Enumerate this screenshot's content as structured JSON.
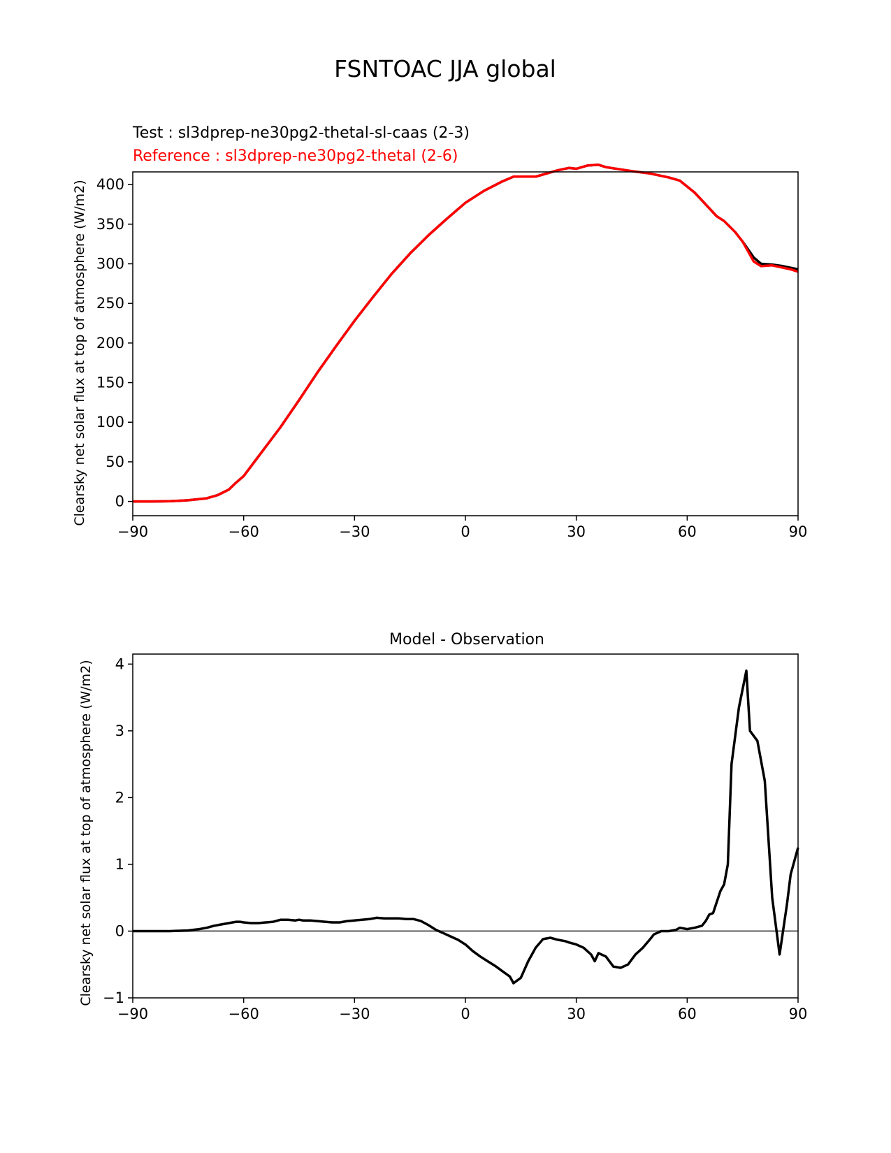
{
  "figure": {
    "title": "FSNTOAC JJA global"
  },
  "chart_data": [
    {
      "type": "line",
      "test_label": "Test : sl3dprep-ne30pg2-thetal-sl-caas (2-3)",
      "reference_label": "Reference : sl3dprep-ne30pg2-thetal (2-6)",
      "ylabel": "Clearsky net solar flux at top of atmosphere (W/m2)",
      "xlim": [
        -90,
        90
      ],
      "ylim": [
        -18,
        416
      ],
      "xticks": [
        -90,
        -60,
        -30,
        0,
        30,
        60,
        90
      ],
      "xtick_labels": [
        "−90",
        "−60",
        "−30",
        "0",
        "30",
        "60",
        "90"
      ],
      "yticks": [
        0,
        50,
        100,
        150,
        200,
        250,
        300,
        350,
        400
      ],
      "ytick_labels": [
        "0",
        "50",
        "100",
        "150",
        "200",
        "250",
        "300",
        "350",
        "400"
      ],
      "colors": {
        "test": "#000000",
        "reference": "#ff0000"
      },
      "series": [
        {
          "role": "test",
          "x": [
            -90,
            -85,
            -80,
            -75,
            -70,
            -67,
            -64,
            -62,
            -60,
            -55,
            -50,
            -45,
            -40,
            -35,
            -30,
            -25,
            -20,
            -15,
            -10,
            -5,
            0,
            5,
            10,
            13,
            15,
            19,
            25,
            28,
            30,
            33,
            36,
            38,
            45,
            50,
            55,
            58,
            62,
            65,
            68,
            70,
            73,
            75,
            78,
            80,
            83,
            86,
            88,
            90
          ],
          "y": [
            0,
            0,
            0.3,
            1.5,
            4,
            8,
            15,
            24,
            32,
            63,
            94,
            128,
            163,
            196,
            228,
            258,
            287,
            313,
            336,
            357,
            377,
            392,
            404,
            410,
            410,
            410,
            418,
            421,
            420,
            424,
            425,
            422,
            417,
            414,
            409,
            405,
            390,
            375,
            360,
            354,
            340,
            328,
            308,
            300,
            299,
            297,
            295,
            293
          ]
        },
        {
          "role": "reference",
          "x": [
            -90,
            -85,
            -80,
            -75,
            -70,
            -67,
            -64,
            -62,
            -60,
            -55,
            -50,
            -45,
            -40,
            -35,
            -30,
            -25,
            -20,
            -15,
            -10,
            -5,
            0,
            5,
            10,
            13,
            15,
            19,
            25,
            28,
            30,
            33,
            36,
            38,
            45,
            50,
            55,
            58,
            62,
            65,
            68,
            70,
            73,
            75,
            78,
            80,
            83,
            86,
            88,
            90
          ],
          "y": [
            0,
            0,
            0.3,
            1.5,
            4,
            8,
            15,
            24,
            32,
            63,
            94,
            128,
            163,
            196,
            228,
            258,
            287,
            313,
            336,
            357,
            377,
            392,
            404,
            410,
            410,
            410,
            418,
            421,
            420,
            424,
            425,
            422,
            417,
            414,
            409,
            405,
            390,
            375,
            360,
            354,
            340,
            328,
            303,
            297,
            298,
            295,
            293,
            290
          ]
        }
      ]
    },
    {
      "type": "line",
      "title": "Model - Observation",
      "ylabel": "Clearsky net solar flux at top of atmosphere (W/m2)",
      "xlim": [
        -90,
        90
      ],
      "ylim": [
        -1,
        4.15
      ],
      "xticks": [
        -90,
        -60,
        -30,
        0,
        30,
        60,
        90
      ],
      "xtick_labels": [
        "−90",
        "−60",
        "−30",
        "0",
        "30",
        "60",
        "90"
      ],
      "yticks": [
        -1,
        0,
        1,
        2,
        3,
        4
      ],
      "ytick_labels": [
        "−1",
        "0",
        "1",
        "2",
        "3",
        "4"
      ],
      "zero_line": 0,
      "colors": {
        "difference": "#000000",
        "zero_line": "#808080"
      },
      "series": [
        {
          "role": "difference",
          "x": [
            -90,
            -80,
            -75,
            -72,
            -70,
            -68,
            -66,
            -64,
            -63,
            -62,
            -61,
            -60,
            -58,
            -56,
            -54,
            -52,
            -50,
            -48,
            -46,
            -45,
            -44,
            -42,
            -40,
            -38,
            -36,
            -34,
            -32,
            -30,
            -28,
            -26,
            -24,
            -22,
            -20,
            -18,
            -16,
            -14,
            -12,
            -10,
            -8,
            -6,
            -4,
            -2,
            0,
            2,
            4,
            6,
            8,
            10,
            12,
            13,
            15,
            17,
            19,
            21,
            23,
            25,
            27,
            28,
            30,
            32,
            34,
            35,
            36,
            38,
            40,
            42,
            44,
            46,
            48,
            50,
            51,
            53,
            55,
            57,
            58,
            60,
            62,
            64,
            65,
            66,
            67,
            69,
            70,
            71,
            72,
            74,
            76,
            77,
            79,
            81,
            83,
            85,
            87,
            88,
            90
          ],
          "y": [
            0,
            0,
            0.01,
            0.03,
            0.05,
            0.08,
            0.1,
            0.12,
            0.13,
            0.14,
            0.14,
            0.13,
            0.12,
            0.12,
            0.13,
            0.14,
            0.17,
            0.17,
            0.16,
            0.17,
            0.16,
            0.16,
            0.15,
            0.14,
            0.13,
            0.13,
            0.15,
            0.16,
            0.17,
            0.18,
            0.2,
            0.19,
            0.19,
            0.19,
            0.18,
            0.18,
            0.15,
            0.09,
            0.02,
            -0.03,
            -0.08,
            -0.13,
            -0.2,
            -0.3,
            -0.38,
            -0.45,
            -0.52,
            -0.6,
            -0.68,
            -0.78,
            -0.7,
            -0.45,
            -0.25,
            -0.12,
            -0.1,
            -0.13,
            -0.15,
            -0.17,
            -0.2,
            -0.25,
            -0.35,
            -0.45,
            -0.33,
            -0.38,
            -0.53,
            -0.55,
            -0.5,
            -0.35,
            -0.25,
            -0.12,
            -0.05,
            0,
            0,
            0.02,
            0.05,
            0.03,
            0.05,
            0.08,
            0.15,
            0.25,
            0.27,
            0.6,
            0.7,
            1.0,
            2.5,
            3.35,
            3.9,
            3.0,
            2.85,
            2.25,
            0.5,
            -0.35,
            0.4,
            0.85,
            1.25
          ]
        }
      ]
    }
  ]
}
